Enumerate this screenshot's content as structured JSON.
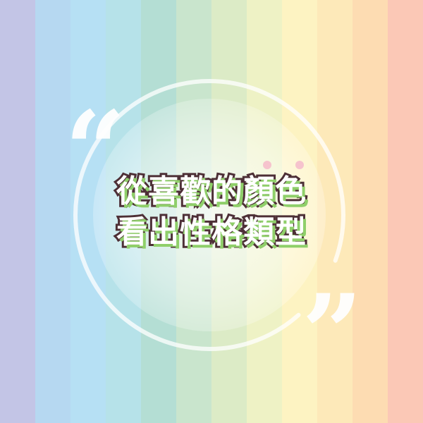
{
  "background": {
    "stripe_colors": [
      "#c3c5e6",
      "#b6d8f1",
      "#b6e0f4",
      "#b6e2e9",
      "#b4ded4",
      "#c9e5cd",
      "#dcebc6",
      "#eef2c5",
      "#fdf3c2",
      "#fde9b9",
      "#fddcb2",
      "#fbc8b6"
    ]
  },
  "colors": {
    "ring": "#ffffff",
    "dots": "#f6c3cd",
    "text_outline": "#4d2f36",
    "text_shadow": "#8fcf6a"
  },
  "quote_open": "“",
  "quote_close": "”",
  "headline": {
    "line1": "從喜歡的顏色",
    "line2": "看出性格類型"
  }
}
